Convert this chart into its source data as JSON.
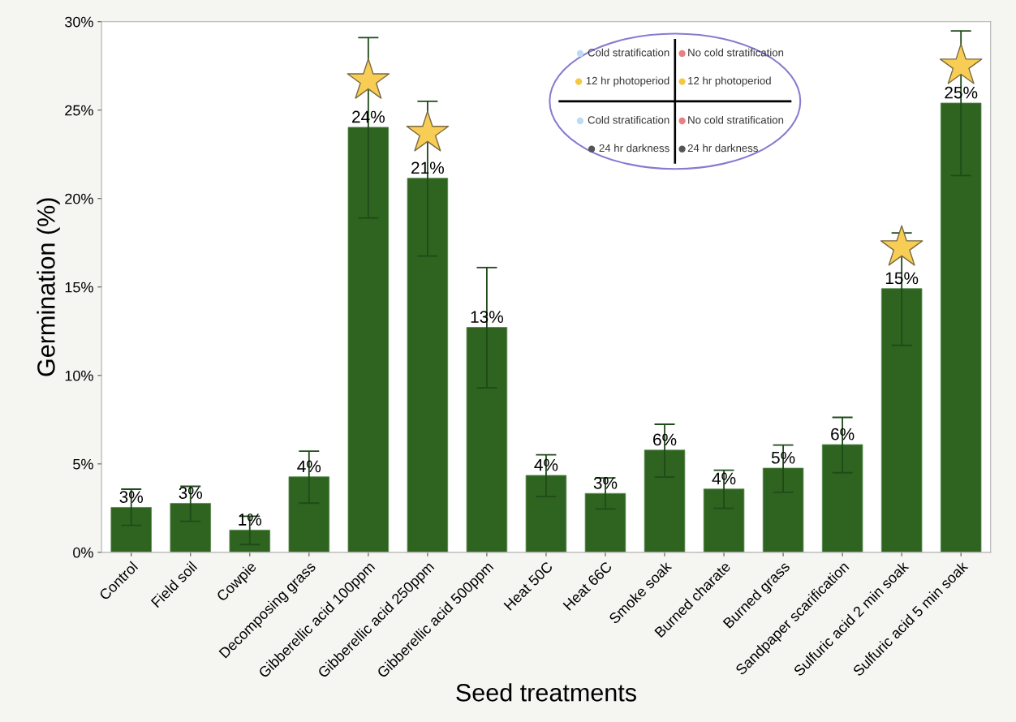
{
  "chart_data": {
    "type": "bar",
    "xlabel": "Seed treatments",
    "ylabel": "Germination (%)",
    "categories": [
      "Control",
      "Field soil",
      "Cowpie",
      "Decomposing grass",
      "Gibberellic acid 100ppm",
      "Gibberellic acid 250ppm",
      "Gibberellic acid 500ppm",
      "Heat 50C",
      "Heat 66C",
      "Smoke soak",
      "Burned charate",
      "Burned grass",
      "Sandpaper scarification",
      "Sulfuric acid 2 min soak",
      "Sulfuric acid 5 min soak"
    ],
    "series": [
      {
        "type": "bar",
        "color": "#2e6420",
        "values": [
          2.54,
          2.77,
          1.26,
          4.27,
          24.03,
          21.15,
          12.72,
          4.35,
          3.33,
          5.78,
          3.58,
          4.76,
          6.09,
          14.91,
          25.4
        ],
        "errors": [
          [
            1.52,
            3.57
          ],
          [
            1.75,
            3.73
          ],
          [
            0.44,
            2.04
          ],
          [
            2.78,
            5.72
          ],
          [
            18.9,
            29.1
          ],
          [
            16.75,
            25.5
          ],
          [
            9.3,
            16.1
          ],
          [
            3.15,
            5.51
          ],
          [
            2.45,
            4.21
          ],
          [
            4.25,
            7.24
          ],
          [
            2.49,
            4.64
          ],
          [
            3.39,
            6.06
          ],
          [
            4.5,
            7.63
          ],
          [
            11.7,
            18.06
          ],
          [
            21.3,
            29.48
          ]
        ],
        "value_labels": [
          "3%",
          "3%",
          "1%",
          "4%",
          "24%",
          "21%",
          "13%",
          "4%",
          "3%",
          "6%",
          "4%",
          "5%",
          "6%",
          "15%",
          "25%"
        ]
      },
      {
        "type": "scatter",
        "color": "#f7cd55",
        "marker": "star",
        "values": [
          null,
          null,
          null,
          null,
          26.67,
          23.7,
          null,
          null,
          null,
          null,
          null,
          null,
          null,
          17.23,
          27.5
        ]
      }
    ],
    "ylim": [
      0,
      30
    ],
    "yticks": [
      {
        "value": 0,
        "label": "0%"
      },
      {
        "value": 5,
        "label": "5%"
      },
      {
        "value": 10,
        "label": "10%"
      },
      {
        "value": 15,
        "label": "15%"
      },
      {
        "value": 20,
        "label": "20%"
      },
      {
        "value": 25,
        "label": "25%"
      },
      {
        "value": 30,
        "label": "30%"
      }
    ],
    "grid": false,
    "annotations": [
      "Cold stratification",
      "No cold stratification",
      "12 hr photoperiod",
      "12 hr photoperiod",
      "Cold stratification",
      "No cold stratification",
      "24 hr darkness",
      "24 hr darkness"
    ]
  }
}
